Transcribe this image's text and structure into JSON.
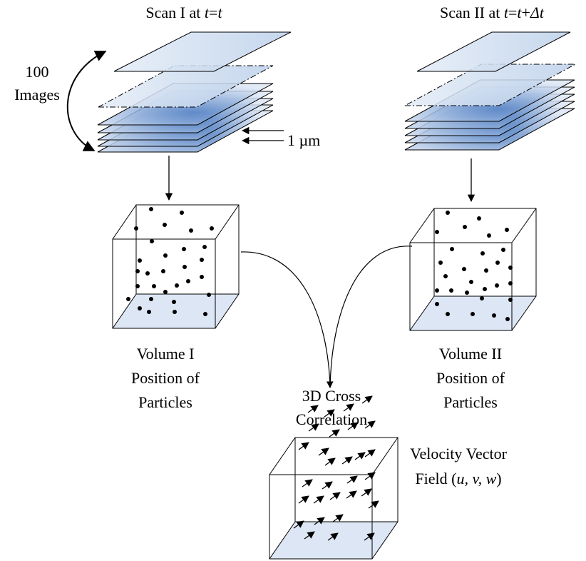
{
  "scan_1": {
    "runs": [
      "Scan I at ",
      "t",
      "=",
      "t"
    ]
  },
  "scan_2": {
    "runs": [
      "Scan II at ",
      "t",
      "=",
      "t",
      "+",
      "Δt"
    ]
  },
  "stack": {
    "count": "100",
    "label": "Images"
  },
  "spacing": "1 µm",
  "volume_1": [
    "Volume I",
    "Position of",
    "Particles"
  ],
  "volume_2": [
    "Volume II",
    "Position of",
    "Particles"
  ],
  "correlation": [
    "3D Cross",
    "Correlation"
  ],
  "velocity": {
    "line_1": "Velocity Vector",
    "line_2_runs": [
      "Field (",
      "u, v, w",
      ")"
    ]
  }
}
